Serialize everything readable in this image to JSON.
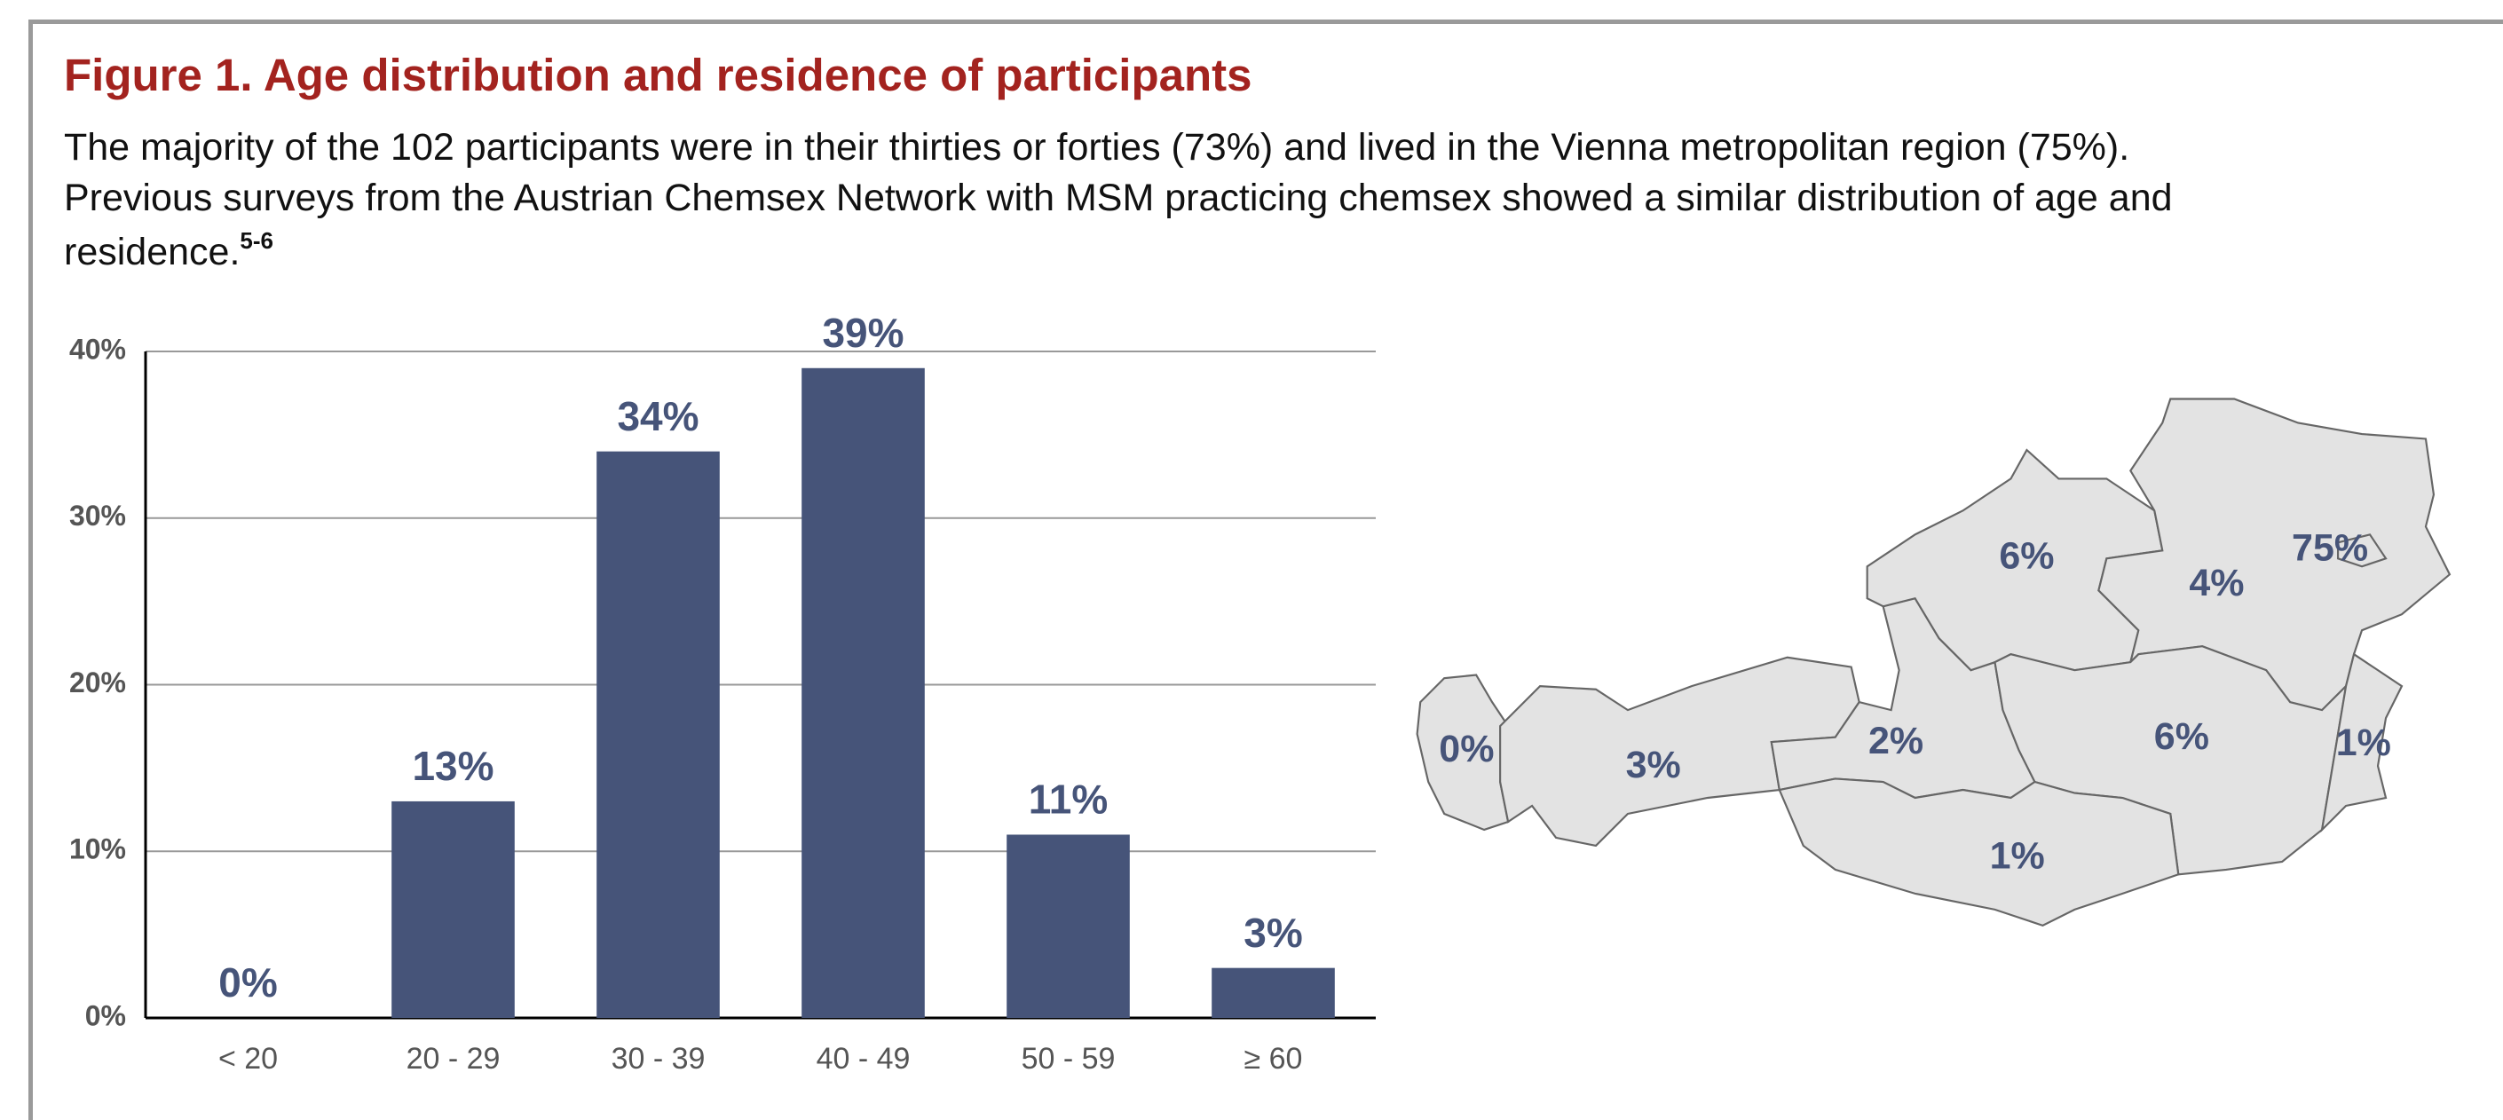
{
  "header": {
    "title": "Figure 1. Age distribution and residence of participants",
    "lines": [
      "The majority of  the 102 participants were in their thirties or forties (73%) and lived  in the Vienna metropolitan region (75%).",
      "Previous surveys from the Austrian Chemsex Network with MSM practicing chemsex showed a similar distribution of age and",
      "residence."
    ],
    "superscript": "5-6"
  },
  "chart_data": {
    "type": "bar",
    "categories": [
      "< 20",
      "20 - 29",
      "30 - 39",
      "40 - 49",
      "50 - 59",
      "≥ 60"
    ],
    "values": [
      0,
      13,
      34,
      39,
      11,
      3
    ],
    "value_labels": [
      "0%",
      "13%",
      "34%",
      "39%",
      "11%",
      "3%"
    ],
    "color": "#465479",
    "ylim": [
      0,
      40
    ],
    "yticks": [
      {
        "value": 0,
        "label": "0%"
      },
      {
        "value": 10,
        "label": "10%"
      },
      {
        "value": 20,
        "label": "20%"
      },
      {
        "value": 30,
        "label": "30%"
      },
      {
        "value": 40,
        "label": "40%"
      }
    ],
    "grid": true
  },
  "map": {
    "labels": [
      "0%",
      "3%",
      "2%",
      "6%",
      "4%",
      "75%",
      "6%",
      "1%",
      "1%"
    ]
  }
}
